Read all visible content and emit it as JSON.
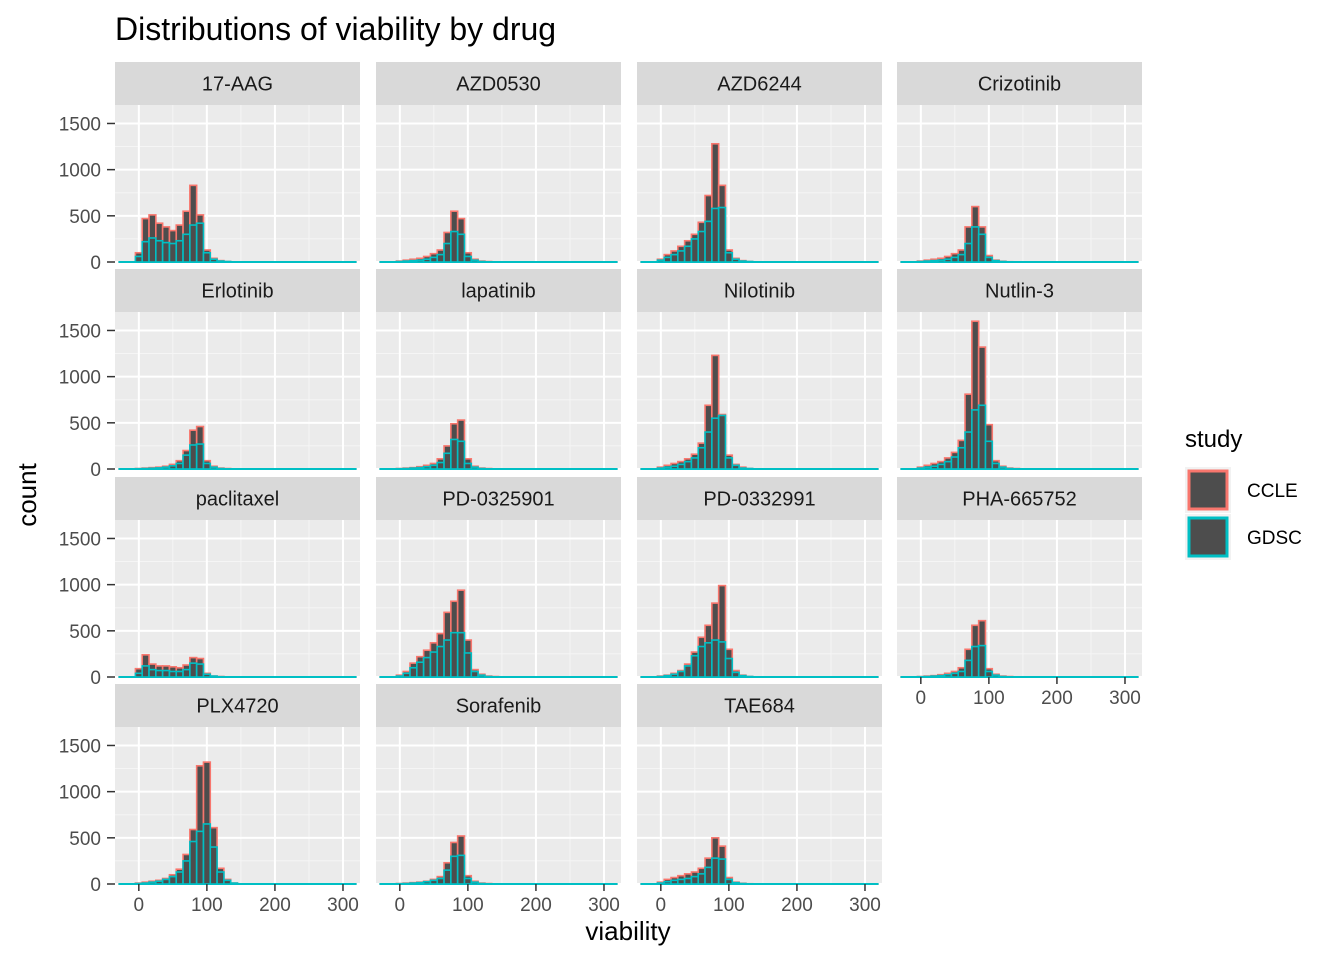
{
  "chart_data": {
    "type": "histogram",
    "title": "Distributions of viability by drug",
    "xlabel": "viability",
    "ylabel": "count",
    "xlim": [
      -35,
      325
    ],
    "ylim": [
      0,
      1700
    ],
    "x_ticks": [
      0,
      100,
      200,
      300
    ],
    "y_ticks": [
      0,
      500,
      1000,
      1500
    ],
    "bin_centers": [
      0,
      10,
      20,
      30,
      40,
      50,
      60,
      70,
      80,
      90,
      100,
      110,
      120,
      130,
      140,
      150
    ],
    "grid": true,
    "legend": {
      "title": "study",
      "placement": "right"
    },
    "series": [
      {
        "name": "CCLE",
        "outline": "#F8766D",
        "fill": "#4d4d4d"
      },
      {
        "name": "GDSC",
        "outline": "#00BFC4",
        "fill": "#4d4d4d"
      }
    ],
    "panels": [
      {
        "drug": "17-AAG",
        "CCLE": [
          100,
          470,
          510,
          420,
          380,
          340,
          400,
          550,
          830,
          510,
          130,
          40,
          15,
          5,
          2,
          0
        ],
        "GDSC": [
          60,
          220,
          260,
          230,
          210,
          200,
          230,
          300,
          400,
          420,
          100,
          30,
          10,
          5,
          2,
          0
        ]
      },
      {
        "drug": "AZD0530",
        "CCLE": [
          10,
          20,
          30,
          40,
          60,
          90,
          130,
          320,
          550,
          470,
          100,
          30,
          10,
          5,
          2,
          0
        ],
        "GDSC": [
          5,
          10,
          15,
          20,
          30,
          50,
          80,
          200,
          330,
          300,
          60,
          20,
          5,
          2,
          0,
          0
        ]
      },
      {
        "drug": "AZD6244",
        "CCLE": [
          30,
          80,
          120,
          170,
          230,
          300,
          430,
          720,
          1280,
          830,
          130,
          40,
          15,
          5,
          2,
          0
        ],
        "GDSC": [
          20,
          50,
          80,
          120,
          170,
          250,
          330,
          440,
          580,
          590,
          100,
          30,
          10,
          5,
          2,
          0
        ]
      },
      {
        "drug": "Crizotinib",
        "CCLE": [
          10,
          20,
          30,
          40,
          60,
          90,
          130,
          380,
          600,
          380,
          70,
          20,
          8,
          3,
          1,
          0
        ],
        "GDSC": [
          5,
          10,
          15,
          20,
          30,
          50,
          80,
          200,
          380,
          300,
          50,
          15,
          5,
          2,
          0,
          0
        ]
      },
      {
        "drug": "Erlotinib",
        "CCLE": [
          5,
          10,
          15,
          20,
          30,
          50,
          90,
          200,
          420,
          460,
          90,
          30,
          10,
          5,
          2,
          0
        ],
        "GDSC": [
          3,
          5,
          8,
          12,
          20,
          35,
          60,
          150,
          260,
          270,
          60,
          20,
          5,
          2,
          0,
          0
        ]
      },
      {
        "drug": "lapatinib",
        "CCLE": [
          5,
          10,
          15,
          25,
          40,
          60,
          110,
          250,
          490,
          530,
          110,
          30,
          10,
          5,
          2,
          0
        ],
        "GDSC": [
          3,
          5,
          10,
          15,
          25,
          40,
          70,
          170,
          320,
          300,
          60,
          20,
          5,
          2,
          0,
          0
        ]
      },
      {
        "drug": "Nilotinib",
        "CCLE": [
          20,
          40,
          60,
          80,
          110,
          160,
          280,
          690,
          1230,
          590,
          150,
          50,
          20,
          5,
          2,
          0
        ],
        "GDSC": [
          10,
          20,
          30,
          50,
          80,
          120,
          230,
          400,
          550,
          580,
          120,
          40,
          10,
          5,
          2,
          0
        ]
      },
      {
        "drug": "Nutlin-3",
        "CCLE": [
          20,
          40,
          60,
          80,
          120,
          180,
          310,
          810,
          1600,
          1320,
          480,
          90,
          30,
          10,
          5,
          0
        ],
        "GDSC": [
          10,
          20,
          30,
          50,
          80,
          130,
          230,
          400,
          640,
          690,
          300,
          60,
          20,
          5,
          2,
          0
        ]
      },
      {
        "drug": "paclitaxel",
        "CCLE": [
          90,
          240,
          140,
          120,
          120,
          110,
          100,
          130,
          210,
          200,
          40,
          10,
          5,
          2,
          0,
          0
        ],
        "GDSC": [
          40,
          120,
          80,
          70,
          70,
          60,
          60,
          80,
          150,
          140,
          30,
          10,
          3,
          1,
          0,
          0
        ]
      },
      {
        "drug": "PD-0325901",
        "CCLE": [
          20,
          60,
          150,
          220,
          290,
          370,
          470,
          700,
          820,
          940,
          400,
          80,
          30,
          10,
          5,
          0
        ],
        "GDSC": [
          10,
          40,
          100,
          160,
          210,
          270,
          330,
          400,
          480,
          480,
          260,
          60,
          20,
          5,
          2,
          0
        ]
      },
      {
        "drug": "PD-0332991",
        "CCLE": [
          10,
          20,
          40,
          70,
          140,
          270,
          430,
          560,
          800,
          990,
          300,
          70,
          20,
          5,
          2,
          0
        ],
        "GDSC": [
          5,
          15,
          30,
          60,
          120,
          230,
          330,
          370,
          400,
          380,
          200,
          50,
          15,
          5,
          2,
          0
        ]
      },
      {
        "drug": "PHA-665752",
        "CCLE": [
          5,
          10,
          15,
          25,
          40,
          60,
          100,
          300,
          560,
          610,
          90,
          30,
          10,
          5,
          2,
          0
        ],
        "GDSC": [
          3,
          5,
          10,
          15,
          25,
          40,
          60,
          180,
          330,
          340,
          60,
          20,
          5,
          2,
          0,
          0
        ]
      },
      {
        "drug": "PLX4720",
        "CCLE": [
          10,
          20,
          30,
          40,
          60,
          100,
          160,
          320,
          590,
          1280,
          1320,
          610,
          170,
          50,
          10,
          0
        ],
        "GDSC": [
          5,
          10,
          20,
          30,
          50,
          80,
          130,
          250,
          460,
          570,
          650,
          400,
          130,
          40,
          10,
          0
        ]
      },
      {
        "drug": "Sorafenib",
        "CCLE": [
          5,
          10,
          15,
          20,
          30,
          50,
          80,
          230,
          450,
          520,
          90,
          30,
          10,
          5,
          2,
          0
        ],
        "GDSC": [
          3,
          5,
          10,
          15,
          25,
          40,
          60,
          150,
          300,
          310,
          60,
          20,
          5,
          2,
          0,
          0
        ]
      },
      {
        "drug": "TAE684",
        "CCLE": [
          20,
          50,
          70,
          90,
          110,
          130,
          170,
          280,
          500,
          410,
          70,
          20,
          8,
          3,
          1,
          0
        ],
        "GDSC": [
          10,
          25,
          40,
          50,
          60,
          80,
          110,
          180,
          280,
          270,
          50,
          15,
          5,
          2,
          0,
          0
        ]
      }
    ]
  }
}
